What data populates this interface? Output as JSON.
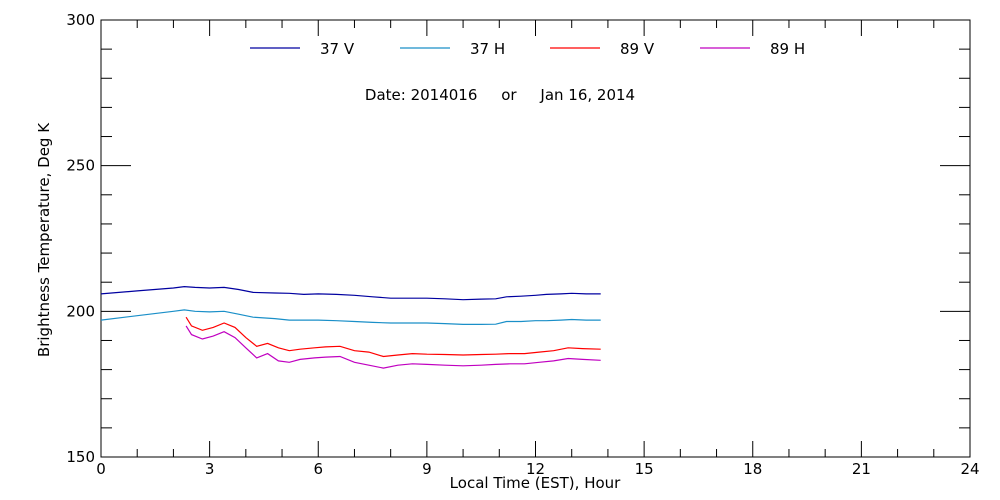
{
  "chart_data": {
    "type": "line",
    "subtitle": "Date: 2014016     or     Jan 16, 2014",
    "xlabel": "Local Time (EST), Hour",
    "ylabel": "Brightness Temperature, Deg K",
    "xlim": [
      0,
      24
    ],
    "ylim": [
      150,
      300
    ],
    "x_ticks": [
      0,
      3,
      6,
      9,
      12,
      15,
      18,
      21,
      24
    ],
    "y_ticks": [
      150,
      200,
      250,
      300
    ],
    "x_tick_labels": [
      "0",
      "3",
      "6",
      "9",
      "12",
      "15",
      "18",
      "21",
      "24"
    ],
    "y_tick_labels": [
      "150",
      "200",
      "250",
      "300"
    ],
    "grid": false,
    "legend_position": "top",
    "series": [
      {
        "name": "37 V",
        "color": "#0000a0",
        "x": [
          0,
          1,
          2,
          2.3,
          2.6,
          3,
          3.4,
          3.8,
          4.2,
          4.8,
          5.2,
          5.6,
          6,
          6.5,
          7,
          7.5,
          8,
          8.5,
          9,
          9.5,
          10,
          10.5,
          10.9,
          11.2,
          11.6,
          12,
          12.3,
          12.7,
          13,
          13.4,
          13.8
        ],
        "y": [
          206,
          207,
          208,
          208.5,
          208.2,
          208,
          208.2,
          207.5,
          206.5,
          206.3,
          206.2,
          205.8,
          206,
          205.8,
          205.5,
          205,
          204.5,
          204.5,
          204.5,
          204.3,
          204,
          204.2,
          204.3,
          205,
          205.2,
          205.5,
          205.8,
          206,
          206.2,
          206,
          206
        ]
      },
      {
        "name": "37 H",
        "color": "#1a8fc8",
        "x": [
          0,
          1,
          2,
          2.3,
          2.6,
          3,
          3.4,
          3.8,
          4.2,
          4.8,
          5.2,
          5.6,
          6,
          6.5,
          7,
          7.5,
          8,
          8.5,
          9,
          9.5,
          10,
          10.5,
          10.9,
          11.2,
          11.6,
          12,
          12.3,
          12.7,
          13,
          13.4,
          13.8
        ],
        "y": [
          197,
          198.5,
          200,
          200.5,
          200,
          199.8,
          200,
          199,
          198,
          197.5,
          197,
          197,
          197,
          196.8,
          196.5,
          196.2,
          196,
          196,
          196,
          195.8,
          195.5,
          195.5,
          195.6,
          196.5,
          196.5,
          196.8,
          196.8,
          197,
          197.2,
          197,
          197
        ]
      },
      {
        "name": "89 V",
        "color": "#ff0000",
        "x": [
          2.35,
          2.5,
          2.8,
          3.1,
          3.4,
          3.7,
          4.0,
          4.3,
          4.6,
          4.9,
          5.2,
          5.5,
          5.9,
          6.2,
          6.6,
          7.0,
          7.4,
          7.8,
          8.2,
          8.6,
          9.0,
          9.5,
          10.0,
          10.5,
          10.9,
          11.3,
          11.7,
          12.1,
          12.5,
          12.9,
          13.3,
          13.8
        ],
        "y": [
          198,
          195,
          193.5,
          194.5,
          196,
          194.5,
          191,
          188,
          189,
          187.5,
          186.5,
          187,
          187.5,
          187.8,
          188,
          186.5,
          186,
          184.5,
          185,
          185.5,
          185.3,
          185.2,
          185,
          185.2,
          185.3,
          185.5,
          185.5,
          186,
          186.5,
          187.5,
          187.2,
          187
        ]
      },
      {
        "name": "89 H",
        "color": "#c000c0",
        "x": [
          2.35,
          2.5,
          2.8,
          3.1,
          3.4,
          3.7,
          4.0,
          4.3,
          4.6,
          4.9,
          5.2,
          5.5,
          5.9,
          6.2,
          6.6,
          7.0,
          7.4,
          7.8,
          8.2,
          8.6,
          9.0,
          9.5,
          10.0,
          10.5,
          10.9,
          11.3,
          11.7,
          12.1,
          12.5,
          12.9,
          13.3,
          13.8
        ],
        "y": [
          195,
          192,
          190.5,
          191.5,
          193,
          191,
          187.5,
          184,
          185.5,
          183,
          182.5,
          183.5,
          184,
          184.3,
          184.5,
          182.5,
          181.5,
          180.5,
          181.5,
          182,
          181.8,
          181.5,
          181.3,
          181.5,
          181.8,
          182,
          182,
          182.5,
          183,
          183.8,
          183.5,
          183.2
        ]
      }
    ]
  }
}
